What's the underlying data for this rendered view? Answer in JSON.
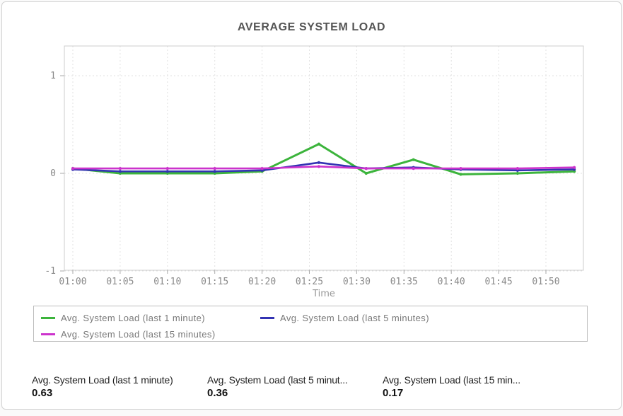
{
  "chart_data": {
    "type": "line",
    "title": "AVERAGE SYSTEM LOAD",
    "xlabel": "Time",
    "ylabel": "",
    "ylim": [
      -1,
      1
    ],
    "y_tick_labels": [
      "1",
      "0",
      "-1"
    ],
    "y_tick_values": [
      1,
      0,
      -1
    ],
    "x_tick_labels": [
      "01:00",
      "01:05",
      "01:10",
      "01:15",
      "01:20",
      "01:25",
      "01:30",
      "01:35",
      "01:40",
      "01:45",
      "01:50"
    ],
    "x_tick_minutes": [
      0,
      5,
      10,
      15,
      20,
      25,
      30,
      35,
      40,
      45,
      50
    ],
    "x": [
      "01:00",
      "01:05",
      "01:10",
      "01:15",
      "01:20",
      "01:26",
      "01:31",
      "01:36",
      "01:41",
      "01:47",
      "01:53"
    ],
    "x_offsets_min": [
      0,
      5,
      10,
      15,
      20,
      26,
      31,
      36,
      41,
      47,
      53
    ],
    "grid": true,
    "legend_position": "bottom",
    "series": [
      {
        "name": "Avg. System Load (last 1 minute)",
        "color": "#3cb43c",
        "values": [
          0.05,
          0.0,
          0.0,
          0.0,
          0.02,
          0.3,
          0.0,
          0.14,
          -0.01,
          0.0,
          0.02
        ]
      },
      {
        "name": "Avg. System Load (last 5 minutes)",
        "color": "#3333b3",
        "values": [
          0.04,
          0.02,
          0.02,
          0.02,
          0.03,
          0.11,
          0.05,
          0.06,
          0.04,
          0.03,
          0.04
        ]
      },
      {
        "name": "Avg. System Load (last 15 minutes)",
        "color": "#cc33cc",
        "values": [
          0.05,
          0.05,
          0.05,
          0.05,
          0.05,
          0.07,
          0.05,
          0.05,
          0.05,
          0.05,
          0.06
        ]
      }
    ],
    "colors": {
      "frame": "#cccccc",
      "gridline": "#e2e2e2",
      "tick": "#aaaaaa",
      "tick_text": "#8a8a8a",
      "axis_label_text": "#999999",
      "title_text": "#555555"
    }
  },
  "stats": [
    {
      "label": "Avg. System Load (last 1 minute)",
      "value": "0.63"
    },
    {
      "label": "Avg. System Load (last 5 minut...",
      "value": "0.36"
    },
    {
      "label": "Avg. System Load (last 15 min...",
      "value": "0.17"
    }
  ]
}
